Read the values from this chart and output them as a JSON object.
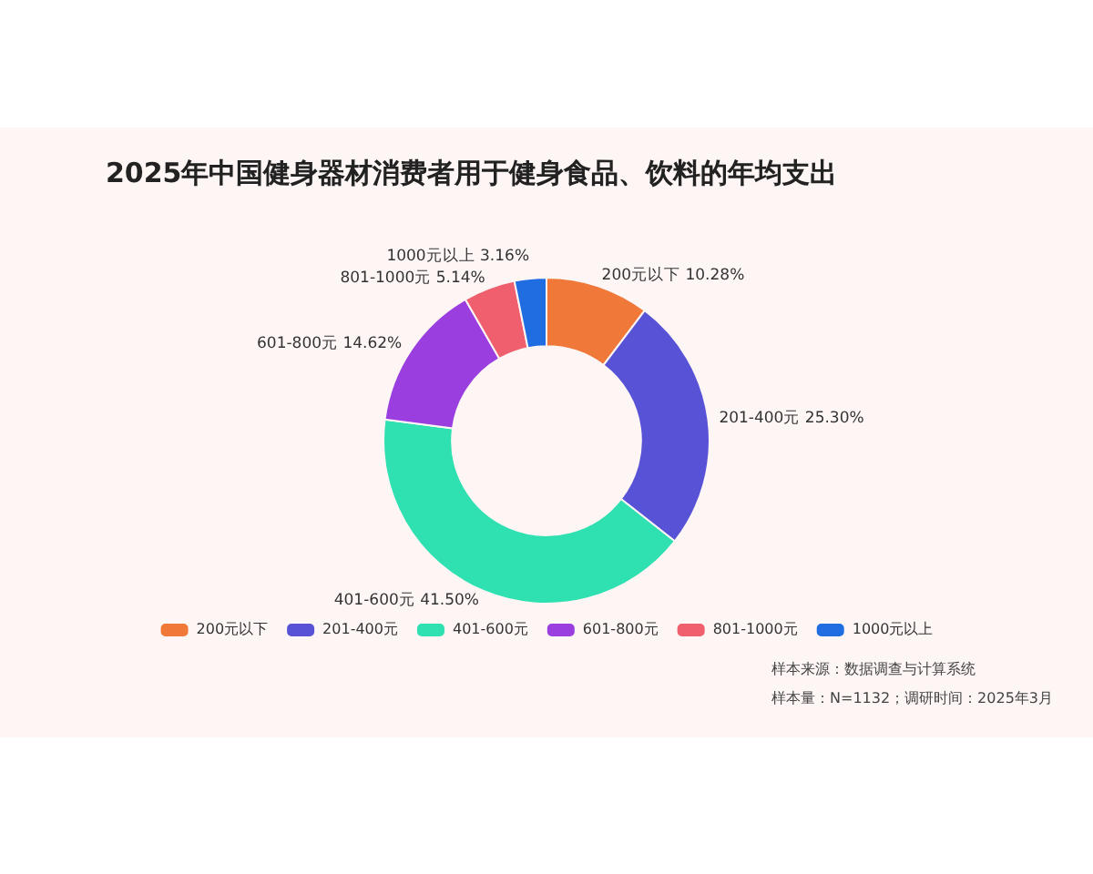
{
  "chart_data": {
    "type": "donut",
    "title": "2025年中国健身器材消费者用于健身食品、饮料的年均支出",
    "categories": [
      "200元以下",
      "201-400元",
      "401-600元",
      "601-800元",
      "801-1000元",
      "1000元以上"
    ],
    "values": [
      10.28,
      25.3,
      41.5,
      14.62,
      5.14,
      3.16
    ],
    "value_labels": [
      "10.28%",
      "25.30%",
      "41.50%",
      "14.62%",
      "5.14%",
      "3.16%"
    ],
    "colors": [
      "#f0793a",
      "#5852d6",
      "#2fe0b0",
      "#9b3ee0",
      "#ef5f6e",
      "#1f6de0"
    ],
    "legend": "bottom",
    "annotations": [
      "样本来源：数据调查与计算系统",
      "样本量：N=1132；调研时间：2025年3月"
    ]
  }
}
